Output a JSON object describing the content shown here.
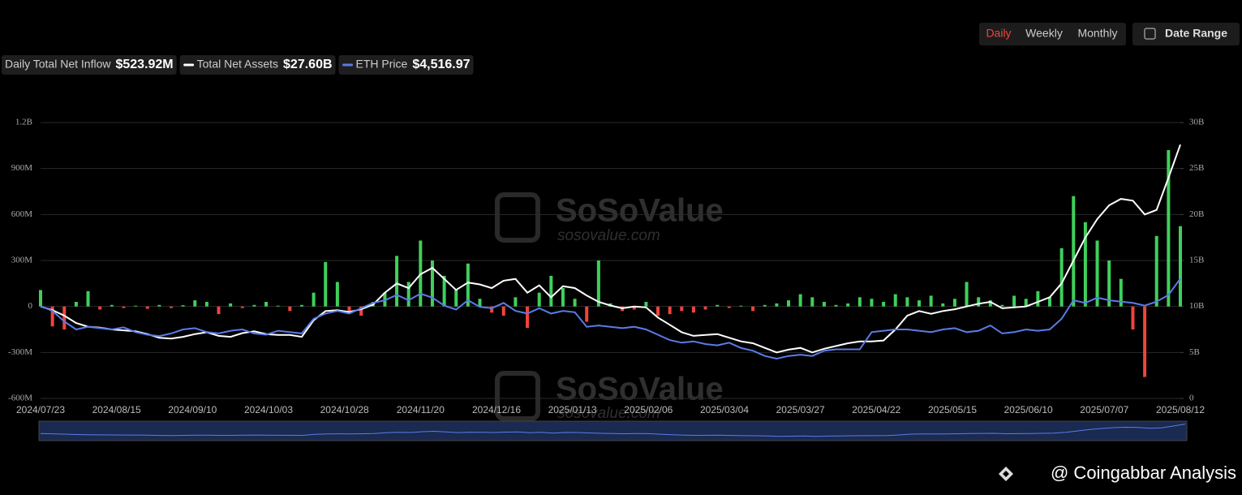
{
  "chart_data": {
    "type": "combo",
    "buttons": [
      "Daily",
      "Weekly",
      "Monthly"
    ],
    "date_range": "Date Range",
    "x_labels": [
      "2024/07/23",
      "2024/08/15",
      "2024/09/10",
      "2024/10/03",
      "2024/10/28",
      "2024/11/20",
      "2024/12/16",
      "2025/01/13",
      "2025/02/06",
      "2025/03/04",
      "2025/03/27",
      "2025/04/22",
      "2025/05/15",
      "2025/06/10",
      "2025/07/07",
      "2025/08/12"
    ],
    "ylim": [
      -600,
      1200
    ],
    "yticks": [
      {
        "value": 1200,
        "label": "1.2B"
      },
      {
        "value": 900,
        "label": "900M"
      },
      {
        "value": 600,
        "label": "600M"
      },
      {
        "value": 300,
        "label": "300M"
      },
      0,
      {
        "value": -300,
        "label": "-300M"
      },
      {
        "value": -600,
        "label": "-600M"
      }
    ],
    "y2lim": [
      0,
      30
    ],
    "y2ticks": [
      {
        "value": 30,
        "label": "30B"
      },
      {
        "value": 25,
        "label": "25B"
      },
      {
        "value": 20,
        "label": "20B"
      },
      {
        "value": 15,
        "label": "15B"
      },
      {
        "value": 10,
        "label": "10B"
      },
      {
        "value": 5,
        "label": "5B"
      },
      0
    ],
    "y3lim": [
      0,
      10400
    ],
    "grid": true,
    "watermark": "SoSoValue",
    "watermark_url": "sosovalue.com",
    "credit": "@ Coingabbar Analysis",
    "series": [
      {
        "name": "Daily Total Net Inflow",
        "type": "bar",
        "color": "#3fd05a",
        "negative_color": "#f0443c",
        "legend_value": "$523.92M",
        "values": [
          107,
          -130,
          -150,
          30,
          100,
          -20,
          10,
          -10,
          5,
          -15,
          10,
          -10,
          8,
          40,
          30,
          -50,
          20,
          -10,
          10,
          30,
          5,
          -30,
          10,
          90,
          290,
          160,
          -40,
          -60,
          30,
          90,
          330,
          160,
          430,
          300,
          200,
          110,
          280,
          50,
          -40,
          -60,
          60,
          -140,
          90,
          200,
          120,
          50,
          -100,
          300,
          20,
          -30,
          -20,
          30,
          -60,
          -50,
          -30,
          -40,
          -20,
          10,
          -10,
          5,
          -30,
          10,
          20,
          40,
          80,
          60,
          30,
          10,
          20,
          60,
          50,
          30,
          80,
          60,
          40,
          70,
          20,
          50,
          160,
          60,
          40,
          10,
          70,
          50,
          100,
          60,
          380,
          720,
          550,
          430,
          300,
          180,
          -150,
          -460,
          460,
          1020,
          523.92
        ]
      },
      {
        "name": "Total Net Assets",
        "type": "line",
        "axis": "y2",
        "color": "#ffffff",
        "legend_value": "$27.60B",
        "values": [
          10.0,
          9.6,
          9.0,
          8.2,
          7.8,
          7.7,
          7.5,
          7.4,
          7.3,
          7.0,
          6.6,
          6.5,
          6.7,
          7.0,
          7.2,
          6.8,
          6.7,
          7.1,
          7.3,
          7.0,
          6.9,
          6.9,
          6.7,
          8.5,
          9.5,
          9.6,
          9.4,
          9.7,
          10.2,
          11.5,
          12.5,
          12.0,
          13.5,
          14.2,
          13.0,
          11.8,
          12.6,
          12.4,
          12.0,
          12.8,
          13.0,
          11.5,
          12.3,
          11.0,
          12.2,
          12.0,
          11.2,
          10.5,
          10.1,
          9.8,
          10.0,
          9.9,
          8.8,
          8.0,
          7.2,
          6.8,
          6.9,
          7.0,
          6.6,
          6.2,
          6.0,
          5.5,
          5.0,
          5.3,
          5.5,
          5.0,
          5.4,
          5.7,
          6.0,
          6.2,
          6.2,
          6.3,
          7.5,
          9.0,
          9.5,
          9.2,
          9.5,
          9.7,
          10.0,
          10.3,
          10.5,
          9.8,
          9.9,
          10.0,
          10.5,
          11.0,
          12.5,
          15.0,
          17.5,
          19.5,
          21.0,
          21.7,
          21.5,
          20.0,
          20.5,
          24.0,
          27.6
        ]
      },
      {
        "name": "ETH Price",
        "type": "line",
        "axis": "y3",
        "color": "#5b7be8",
        "legend_value": "$4,516.97",
        "values": [
          3480,
          3300,
          2900,
          2600,
          2700,
          2650,
          2600,
          2680,
          2500,
          2400,
          2350,
          2450,
          2600,
          2650,
          2500,
          2450,
          2550,
          2600,
          2450,
          2400,
          2550,
          2500,
          2450,
          3000,
          3200,
          3300,
          3200,
          3400,
          3600,
          3700,
          3900,
          3700,
          3950,
          3800,
          3500,
          3350,
          3700,
          3450,
          3400,
          3600,
          3300,
          3200,
          3400,
          3200,
          3300,
          3250,
          2700,
          2750,
          2700,
          2650,
          2700,
          2600,
          2400,
          2200,
          2100,
          2150,
          2050,
          2000,
          2100,
          1900,
          1800,
          1600,
          1500,
          1600,
          1650,
          1600,
          1800,
          1850,
          1850,
          1850,
          2500,
          2550,
          2600,
          2600,
          2550,
          2500,
          2600,
          2650,
          2500,
          2550,
          2750,
          2450,
          2500,
          2600,
          2550,
          2600,
          3000,
          3700,
          3600,
          3800,
          3700,
          3650,
          3600,
          3500,
          3650,
          3900,
          4516.97
        ]
      }
    ]
  }
}
